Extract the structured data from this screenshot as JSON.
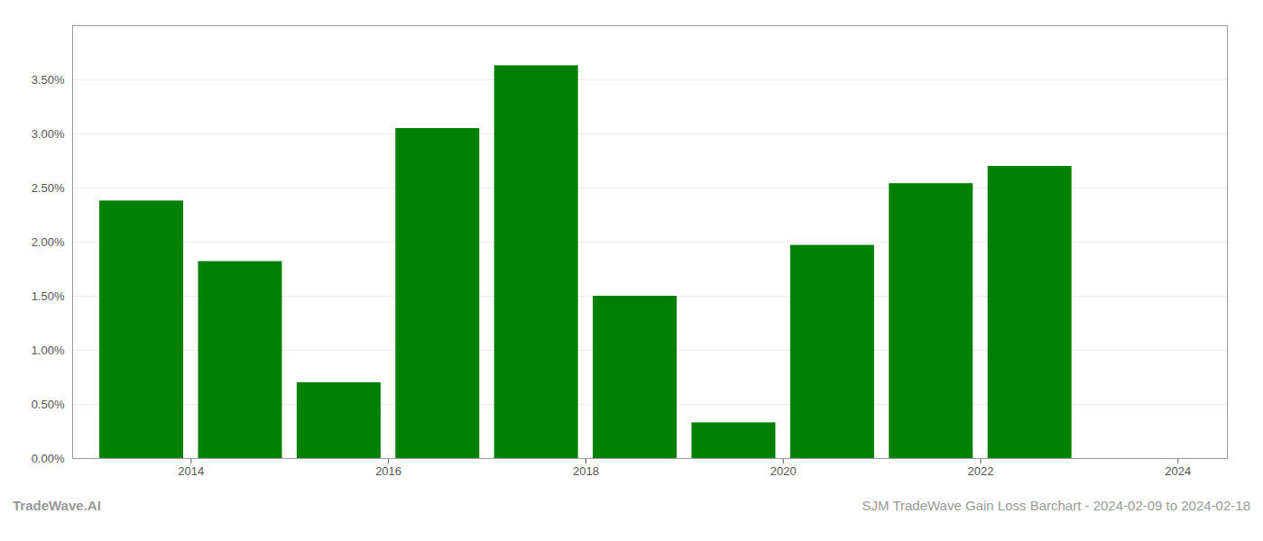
{
  "chart_data": {
    "type": "bar",
    "x": [
      2013.5,
      2014.5,
      2015.5,
      2016.5,
      2017.5,
      2018.5,
      2019.5,
      2020.5,
      2021.5,
      2022.5
    ],
    "values": [
      0.0238,
      0.0182,
      0.007,
      0.0305,
      0.0363,
      0.015,
      0.0033,
      0.0197,
      0.0254,
      0.027
    ],
    "color": "#008000",
    "xlim": [
      2012.8,
      2024.5
    ],
    "xticks": [
      2014,
      2016,
      2018,
      2020,
      2022,
      2024
    ],
    "ylim": [
      0,
      0.04
    ],
    "yticks": [
      {
        "value": 0.0,
        "label": "0.00%"
      },
      {
        "value": 0.005,
        "label": "0.50%"
      },
      {
        "value": 0.01,
        "label": "1.00%"
      },
      {
        "value": 0.015,
        "label": "1.50%"
      },
      {
        "value": 0.02,
        "label": "2.00%"
      },
      {
        "value": 0.025,
        "label": "2.50%"
      },
      {
        "value": 0.03,
        "label": "3.00%"
      },
      {
        "value": 0.035,
        "label": "3.50%"
      }
    ],
    "grid": true,
    "annotations": [
      "TradeWave.AI",
      "SJM TradeWave Gain Loss Barchart - 2024-02-09 to 2024-02-18"
    ]
  }
}
